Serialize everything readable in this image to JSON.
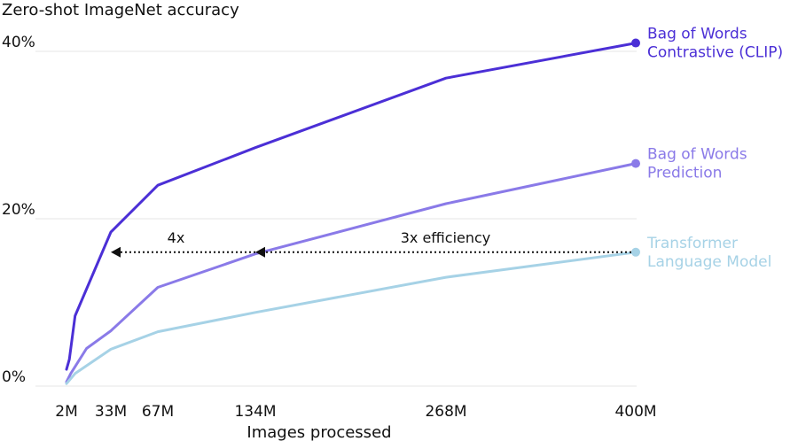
{
  "chart_data": {
    "type": "line",
    "ylabel": "Zero-shot ImageNet accuracy",
    "xlabel": "Images processed",
    "ylim": [
      0,
      42
    ],
    "y_ticks": [
      {
        "value": 0,
        "label": "0%"
      },
      {
        "value": 20,
        "label": "20%"
      },
      {
        "value": 40,
        "label": "40%"
      }
    ],
    "x_ticks": [
      {
        "value": 2,
        "label": "2M"
      },
      {
        "value": 33,
        "label": "33M"
      },
      {
        "value": 67,
        "label": "67M"
      },
      {
        "value": 134,
        "label": "134M"
      },
      {
        "value": 268,
        "label": "268M"
      },
      {
        "value": 400,
        "label": "400M"
      }
    ],
    "grid": "horizontal",
    "series": [
      {
        "name": "Bag of Words Contrastive (CLIP)",
        "label_lines": [
          "Bag of Words",
          "Contrastive (CLIP)"
        ],
        "color": "#4b2fd6",
        "points": [
          [
            2,
            2.0
          ],
          [
            4,
            3.2
          ],
          [
            8,
            8.4
          ],
          [
            33,
            18.4
          ],
          [
            67,
            24.0
          ],
          [
            134,
            28.5
          ],
          [
            268,
            36.8
          ],
          [
            400,
            41.0
          ]
        ]
      },
      {
        "name": "Bag of Words Prediction",
        "label_lines": [
          "Bag of Words",
          "Prediction"
        ],
        "color": "#8a7ae8",
        "points": [
          [
            2,
            0.5
          ],
          [
            5,
            1.5
          ],
          [
            16,
            4.5
          ],
          [
            33,
            6.6
          ],
          [
            67,
            11.8
          ],
          [
            134,
            15.8
          ],
          [
            268,
            21.8
          ],
          [
            400,
            26.6
          ]
        ]
      },
      {
        "name": "Transformer Language Model",
        "label_lines": [
          "Transformer",
          "Language Model"
        ],
        "color": "#a6d2e6",
        "points": [
          [
            2,
            0.3
          ],
          [
            8,
            1.5
          ],
          [
            33,
            4.4
          ],
          [
            67,
            6.5
          ],
          [
            134,
            8.8
          ],
          [
            268,
            13.0
          ],
          [
            400,
            16.0
          ]
        ]
      }
    ],
    "annotations": [
      {
        "label": "4x",
        "from_x": 134,
        "to_x": 33,
        "y": 16.0
      },
      {
        "label": "3x efficiency",
        "from_x": 400,
        "to_x": 134,
        "y": 16.0
      }
    ]
  }
}
